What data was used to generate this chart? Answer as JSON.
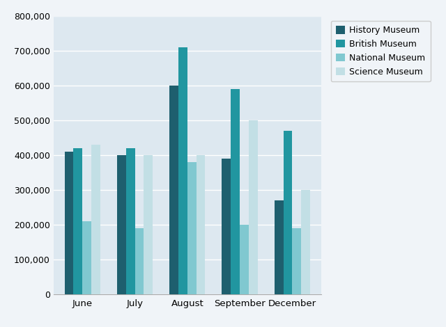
{
  "months": [
    "June",
    "July",
    "August",
    "September",
    "December"
  ],
  "series": {
    "History Museum": [
      410000,
      400000,
      600000,
      390000,
      270000
    ],
    "British Museum": [
      420000,
      420000,
      710000,
      590000,
      470000
    ],
    "National Museum": [
      210000,
      190000,
      380000,
      200000,
      190000
    ],
    "Science Museum": [
      430000,
      400000,
      400000,
      500000,
      300000
    ]
  },
  "colors": {
    "History Museum": "#1e5f6e",
    "British Museum": "#2196a0",
    "National Museum": "#80c8d0",
    "Science Museum": "#c2dfe5"
  },
  "legend_labels": [
    "History Museum",
    "British Museum",
    "National Museum",
    "Science Museum"
  ],
  "ylim": [
    0,
    800000
  ],
  "yticks": [
    0,
    100000,
    200000,
    300000,
    400000,
    500000,
    600000,
    700000,
    800000
  ],
  "ytick_labels": [
    "0",
    "100,000",
    "200,000",
    "300,000",
    "400,000",
    "500,000",
    "600,000",
    "700,000",
    "800,000"
  ],
  "plot_bg_color": "#dde8f0",
  "outer_bg_color": "#f0f4f8",
  "bar_width": 0.17,
  "grid_color": "#ffffff",
  "grid_linewidth": 1.0
}
